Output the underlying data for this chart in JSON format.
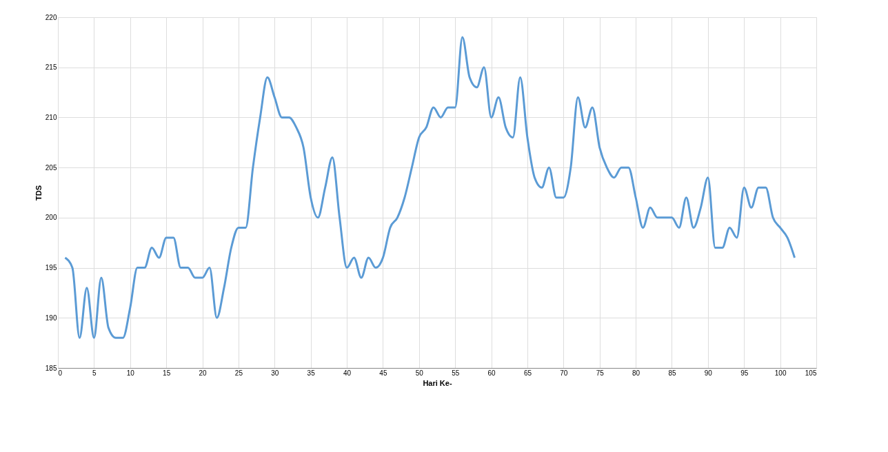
{
  "chart_data": {
    "type": "line",
    "xlabel": "Hari Ke-",
    "ylabel": "TDS",
    "x": [
      1,
      2,
      3,
      4,
      5,
      6,
      7,
      8,
      9,
      10,
      11,
      12,
      13,
      14,
      15,
      16,
      17,
      18,
      19,
      20,
      21,
      22,
      23,
      24,
      25,
      26,
      27,
      28,
      29,
      30,
      31,
      32,
      33,
      34,
      35,
      36,
      37,
      38,
      39,
      40,
      41,
      42,
      43,
      44,
      45,
      46,
      47,
      48,
      49,
      50,
      51,
      52,
      53,
      54,
      55,
      56,
      57,
      58,
      59,
      60,
      61,
      62,
      63,
      64,
      65,
      66,
      67,
      68,
      69,
      70,
      71,
      72,
      73,
      74,
      75,
      76,
      77,
      78,
      79,
      80,
      81,
      82,
      83,
      84,
      85,
      86,
      87,
      88,
      89,
      90,
      91,
      92,
      93,
      94,
      95,
      96,
      97,
      98,
      99,
      100,
      101,
      102
    ],
    "series": [
      {
        "color": "#5b9bd5",
        "values": [
          196,
          195,
          188,
          193,
          188,
          194,
          189,
          188,
          188,
          191,
          195,
          195,
          197,
          196,
          198,
          198,
          195,
          195,
          194,
          194,
          195,
          190,
          193,
          197,
          199,
          199,
          205,
          210,
          214,
          212,
          210,
          210,
          209,
          207,
          202,
          200,
          203,
          206,
          200,
          195,
          196,
          194,
          196,
          195,
          196,
          199,
          200,
          202,
          205,
          208,
          209,
          211,
          210,
          211,
          211,
          218,
          214,
          213,
          215,
          210,
          212,
          209,
          208,
          214,
          208,
          204,
          203,
          205,
          202,
          202,
          205,
          212,
          209,
          211,
          207,
          205,
          204,
          205,
          205,
          202,
          199,
          201,
          200,
          200,
          200,
          199,
          202,
          199,
          201,
          204,
          197,
          197,
          199,
          198,
          203,
          201,
          203,
          203,
          200,
          199,
          198,
          196
        ]
      }
    ],
    "xlim": [
      0,
      105
    ],
    "xticks": [
      0,
      5,
      10,
      15,
      20,
      25,
      30,
      35,
      40,
      45,
      50,
      55,
      60,
      65,
      70,
      75,
      80,
      85,
      90,
      95,
      100,
      105
    ],
    "ylim": [
      185,
      220
    ],
    "yticks": [
      185,
      190,
      195,
      200,
      205,
      210,
      215,
      220
    ],
    "grid": true,
    "legend": false,
    "marker": "none",
    "line_style": "solid"
  }
}
